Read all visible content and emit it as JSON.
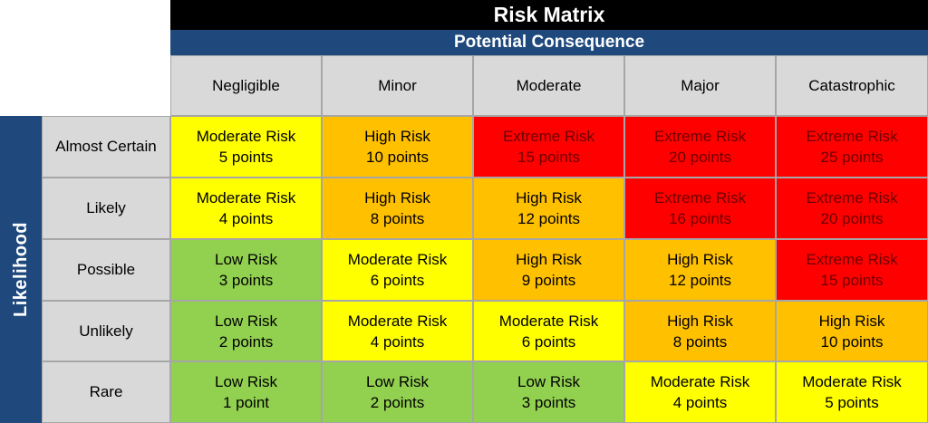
{
  "title": "Risk Matrix",
  "consequence_label": "Potential Consequence",
  "likelihood_label": "Likelihood",
  "consequences": [
    "Negligible",
    "Minor",
    "Moderate",
    "Major",
    "Catastrophic"
  ],
  "likelihoods": [
    "Almost Certain",
    "Likely",
    "Possible",
    "Unlikely",
    "Rare"
  ],
  "colors": {
    "low": "#92d050",
    "moderate": "#ffff00",
    "high": "#ffc000",
    "extreme": "#ff0000",
    "header_bg": "#d9d9d9",
    "title_bg": "#000000",
    "subtitle_bg": "#1f497d"
  },
  "rows": [
    [
      {
        "level": "moderate",
        "label": "Moderate Risk",
        "points": "5 points"
      },
      {
        "level": "high",
        "label": "High Risk",
        "points": "10 points"
      },
      {
        "level": "extreme",
        "label": "Extreme Risk",
        "points": "15 points"
      },
      {
        "level": "extreme",
        "label": "Extreme Risk",
        "points": "20 points"
      },
      {
        "level": "extreme",
        "label": "Extreme Risk",
        "points": "25 points"
      }
    ],
    [
      {
        "level": "moderate",
        "label": "Moderate Risk",
        "points": "4 points"
      },
      {
        "level": "high",
        "label": "High Risk",
        "points": "8 points"
      },
      {
        "level": "high",
        "label": "High Risk",
        "points": "12 points"
      },
      {
        "level": "extreme",
        "label": "Extreme Risk",
        "points": "16 points"
      },
      {
        "level": "extreme",
        "label": "Extreme Risk",
        "points": "20 points"
      }
    ],
    [
      {
        "level": "low",
        "label": "Low Risk",
        "points": "3 points"
      },
      {
        "level": "moderate",
        "label": "Moderate Risk",
        "points": "6 points"
      },
      {
        "level": "high",
        "label": "High Risk",
        "points": "9 points"
      },
      {
        "level": "high",
        "label": "High Risk",
        "points": "12 points"
      },
      {
        "level": "extreme",
        "label": "Extreme Risk",
        "points": "15 points"
      }
    ],
    [
      {
        "level": "low",
        "label": "Low Risk",
        "points": "2 points"
      },
      {
        "level": "moderate",
        "label": "Moderate Risk",
        "points": "4 points"
      },
      {
        "level": "moderate",
        "label": "Moderate Risk",
        "points": "6 points"
      },
      {
        "level": "high",
        "label": "High Risk",
        "points": "8 points"
      },
      {
        "level": "high",
        "label": "High Risk",
        "points": "10 points"
      }
    ],
    [
      {
        "level": "low",
        "label": "Low Risk",
        "points": "1 point"
      },
      {
        "level": "low",
        "label": "Low Risk",
        "points": "2 points"
      },
      {
        "level": "low",
        "label": "Low Risk",
        "points": "3 points"
      },
      {
        "level": "moderate",
        "label": "Moderate Risk",
        "points": "4 points"
      },
      {
        "level": "moderate",
        "label": "Moderate Risk",
        "points": "5 points"
      }
    ]
  ]
}
